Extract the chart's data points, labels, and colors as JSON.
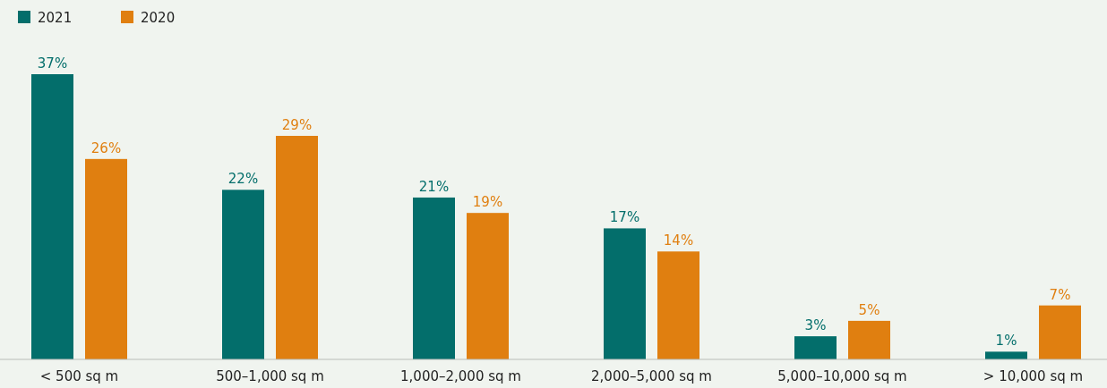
{
  "chart_data": {
    "type": "bar",
    "categories": [
      "< 500 sq m",
      "500–1,000 sq m",
      "1,000–2,000 sq m",
      "2,000–5,000 sq m",
      "5,000–10,000 sq m",
      "> 10,000 sq m"
    ],
    "series": [
      {
        "name": "2021",
        "color": "#036e6b",
        "values": [
          37,
          22,
          21,
          17,
          3,
          1
        ],
        "value_labels": [
          "37%",
          "22%",
          "21%",
          "17%",
          "3%",
          "1%"
        ]
      },
      {
        "name": "2020",
        "color": "#e07f10",
        "values": [
          26,
          29,
          19,
          14,
          5,
          7
        ],
        "value_labels": [
          "26%",
          "29%",
          "19%",
          "14%",
          "5%",
          "7%"
        ]
      }
    ],
    "legend": "top left"
  }
}
